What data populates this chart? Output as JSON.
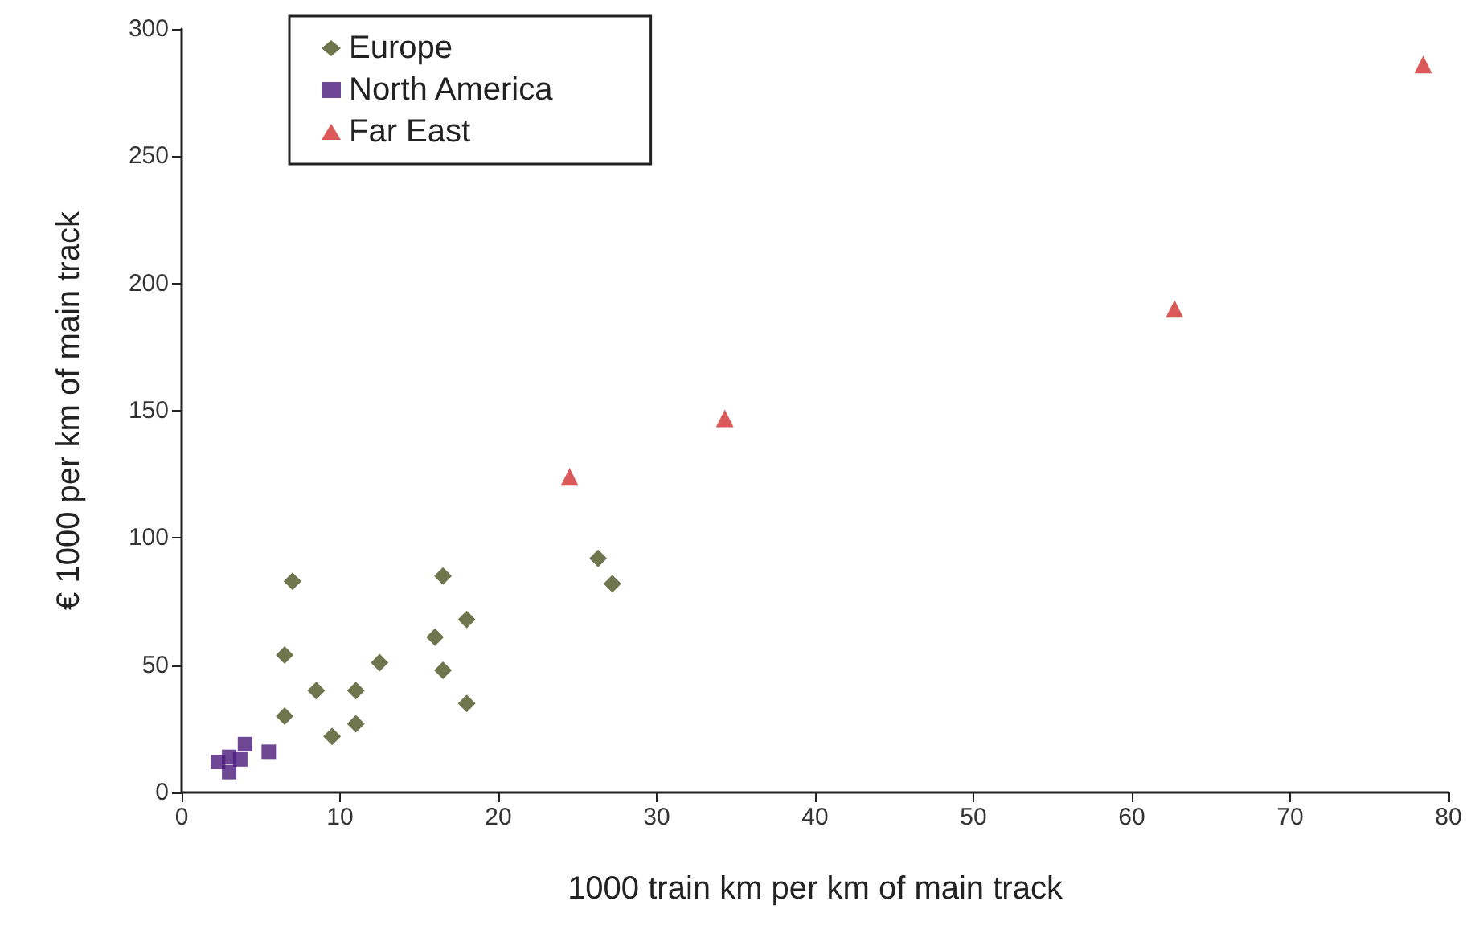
{
  "chart_data": {
    "type": "scatter",
    "xlabel": "1000 train km per km of main track",
    "ylabel": "€ 1000 per km of main track",
    "xlim": [
      0,
      80
    ],
    "xticks": [
      0,
      10,
      20,
      30,
      40,
      50,
      60,
      70,
      80
    ],
    "ylim": [
      0,
      300
    ],
    "yticks": [
      0,
      50,
      100,
      150,
      200,
      250,
      300
    ],
    "grid": false,
    "legend": "top left",
    "series": [
      {
        "name": "Europe",
        "color": "#4b5320",
        "marker": "diamond",
        "x": [
          6.5,
          6.5,
          7,
          8.5,
          9.5,
          11,
          11,
          12.5,
          16,
          16.5,
          16.5,
          18,
          18,
          26.3,
          27.2
        ],
        "values": [
          54,
          30,
          83,
          40,
          22,
          40,
          27,
          51,
          61,
          85,
          48,
          68,
          35,
          92,
          82
        ]
      },
      {
        "name": "North America",
        "color": "#4b1a7a",
        "marker": "square",
        "x": [
          2.3,
          3,
          3,
          3.7,
          4,
          5.5
        ],
        "values": [
          12,
          14,
          8,
          13,
          19,
          16
        ]
      },
      {
        "name": "Far East",
        "color": "#d32f2f",
        "marker": "triangle",
        "x": [
          24.5,
          34.3,
          62.7,
          78.4
        ],
        "values": [
          124,
          147,
          190,
          286
        ]
      }
    ]
  }
}
